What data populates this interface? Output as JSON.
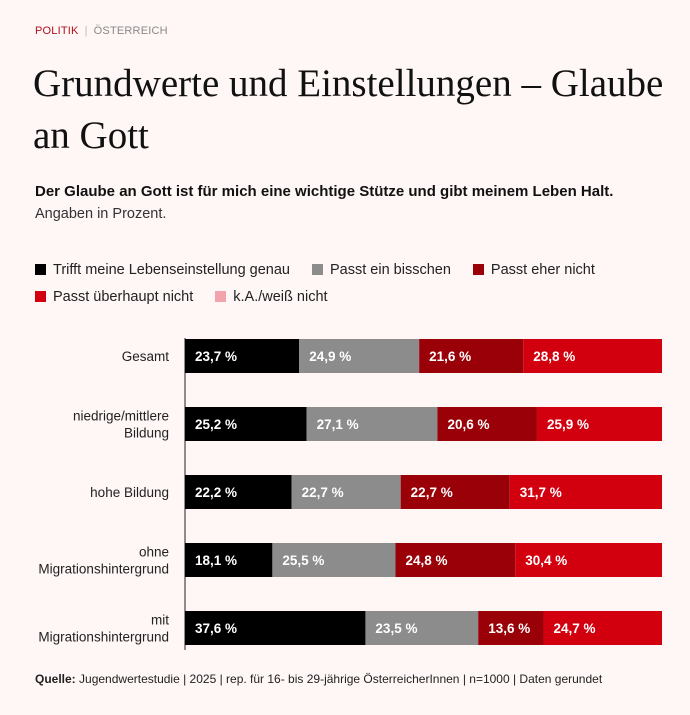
{
  "header": {
    "section": "POLITIK",
    "subsection": "ÖSTERREICH"
  },
  "title": "Grundwerte und Einstellungen – Glaube an Gott",
  "subtitle": "Der Glaube an Gott ist für mich eine wichtige Stütze und gibt meinem Leben Halt.",
  "unit_note": "Angaben in Prozent.",
  "source": {
    "label": "Quelle:",
    "text": "Jugendwertestudie | 2025 | rep. für 16- bis 29-jährige ÖsterreicherInnen | n=1000 | Daten gerundet"
  },
  "chart_data": {
    "type": "bar",
    "orientation": "horizontal",
    "stacked": true,
    "legend": "top",
    "categories": [
      [
        "Gesamt"
      ],
      [
        "niedrige/mittlere",
        "Bildung"
      ],
      [
        "hohe Bildung"
      ],
      [
        "ohne",
        "Migrationshintergrund"
      ],
      [
        "mit",
        "Migrationshintergrund"
      ]
    ],
    "series": [
      {
        "name": "Trifft meine Lebenseinstellung genau",
        "color": "#000000",
        "values": [
          23.7,
          25.2,
          22.2,
          18.1,
          37.6
        ]
      },
      {
        "name": "Passt ein bisschen",
        "color": "#8c8c8c",
        "values": [
          24.9,
          27.1,
          22.7,
          25.5,
          23.5
        ]
      },
      {
        "name": "Passt eher nicht",
        "color": "#9a0008",
        "values": [
          21.6,
          20.6,
          22.7,
          24.8,
          13.6
        ]
      },
      {
        "name": "Passt überhaupt nicht",
        "color": "#d2000f",
        "values": [
          28.8,
          25.9,
          31.7,
          30.4,
          24.7
        ]
      },
      {
        "name": "k.A./weiß nicht",
        "color": "#f3a3ab",
        "values": [
          null,
          null,
          null,
          null,
          null
        ]
      }
    ]
  }
}
